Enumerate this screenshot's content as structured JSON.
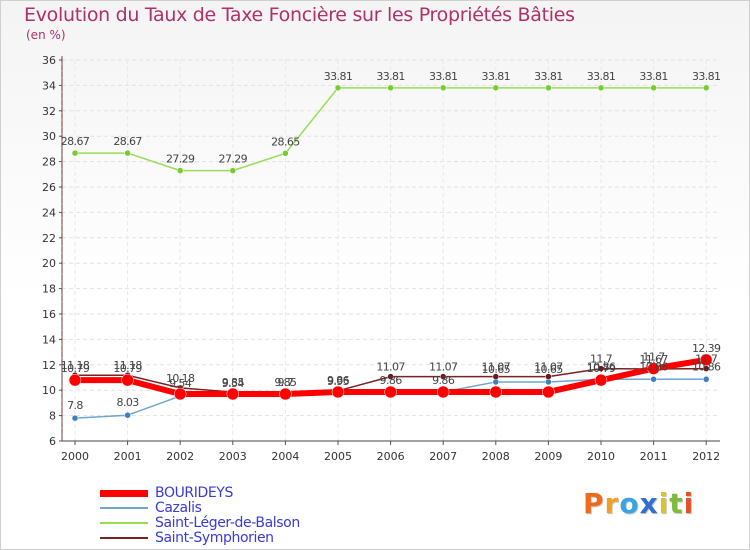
{
  "chart_data": {
    "type": "line",
    "title": "Evolution du Taux de Taxe Foncière sur les Propriétés Bâties",
    "ylabel": "(en %)",
    "xlabel": "",
    "ylim": [
      6,
      36
    ],
    "yticks": [
      6,
      8,
      10,
      12,
      14,
      16,
      18,
      20,
      22,
      24,
      26,
      28,
      30,
      32,
      34,
      36
    ],
    "categories": [
      "2000",
      "2001",
      "2002",
      "2003",
      "2004",
      "2005",
      "2006",
      "2007",
      "2008",
      "2009",
      "2010",
      "2011",
      "2012"
    ],
    "grid": true,
    "legend_position": "bottom-left",
    "series": [
      {
        "name": "BOURIDEYS",
        "color": "#ff0000",
        "values": [
          10.79,
          10.79,
          9.7,
          9.7,
          9.7,
          9.86,
          9.86,
          9.86,
          9.86,
          9.86,
          10.79,
          11.7,
          12.39
        ],
        "labels": [
          "10.79",
          "10.79",
          "",
          "",
          "9.7",
          "9.86",
          "9.86",
          "9.86",
          "",
          "",
          "10.79",
          "11.7",
          "12.39"
        ]
      },
      {
        "name": "Cazalis",
        "color": "#6fa5cf",
        "values": [
          7.8,
          8.03,
          9.54,
          9.54,
          9.7,
          9.86,
          9.86,
          9.86,
          10.65,
          10.65,
          10.86,
          10.86,
          10.86
        ],
        "labels": [
          "7.8",
          "8.03",
          "9.54",
          "9.54",
          "",
          "",
          "",
          "",
          "10.65",
          "10.65",
          "10.86",
          "10.86",
          "10.86"
        ]
      },
      {
        "name": "Saint-Léger-de-Balson",
        "color": "#99dd55",
        "values": [
          28.67,
          28.67,
          27.29,
          27.29,
          28.65,
          33.81,
          33.81,
          33.81,
          33.81,
          33.81,
          33.81,
          33.81,
          33.81
        ],
        "labels": [
          "28.67",
          "28.67",
          "27.29",
          "27.29",
          "28.65",
          "33.81",
          "33.81",
          "33.81",
          "33.81",
          "33.81",
          "33.81",
          "33.81",
          "33.81"
        ]
      },
      {
        "name": "Saint-Symphorien",
        "color": "#7a2222",
        "values": [
          11.18,
          11.18,
          10.18,
          9.85,
          9.85,
          9.95,
          11.07,
          11.07,
          11.07,
          11.07,
          11.7,
          11.67,
          11.7
        ],
        "labels": [
          "11.18",
          "11.18",
          "10.18",
          "9.85",
          "9.85",
          "9.95",
          "11.07",
          "11.07",
          "11.07",
          "11.07",
          "11.7",
          "11.67",
          "11.7"
        ]
      }
    ]
  },
  "brand": {
    "letters": [
      "P",
      "r",
      "o",
      "x",
      "i",
      "t",
      "i"
    ],
    "colors": [
      "#ee6a1f",
      "#f2a025",
      "#3aa3e0",
      "#2e6fcf",
      "#d9c42a",
      "#7dbb3a",
      "#e5512a"
    ]
  }
}
